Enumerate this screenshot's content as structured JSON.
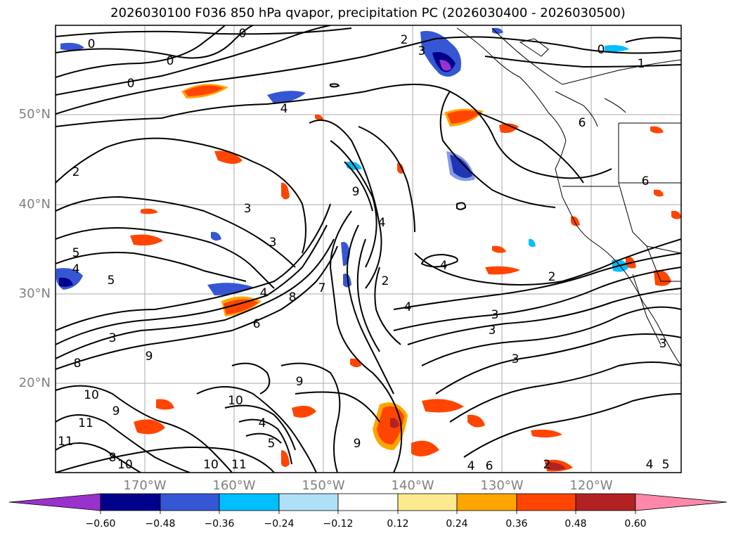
{
  "title": "2026030100 F036 850 hPa qvapor, precipitation PC (2026030400 - 2026030500)",
  "map": {
    "lat_labels": [
      "50°N",
      "40°N",
      "30°N",
      "20°N"
    ],
    "lon_labels": [
      "170°W",
      "160°W",
      "150°W",
      "140°W",
      "130°W",
      "120°W"
    ],
    "contour_labels": [
      "0",
      "0",
      "0",
      "0",
      "2",
      "3",
      "0",
      "1",
      "4",
      "2",
      "6",
      "6",
      "3",
      "9",
      "4",
      "5",
      "4",
      "5",
      "3",
      "7",
      "4",
      "2",
      "4",
      "3",
      "3",
      "4",
      "3",
      "8",
      "3",
      "6",
      "9",
      "8",
      "9",
      "10",
      "9",
      "11",
      "10",
      "4",
      "5",
      "11",
      "8",
      "10",
      "10",
      "11",
      "9",
      "4",
      "6",
      "2",
      "3",
      "2",
      "4",
      "5"
    ]
  },
  "colorbar": {
    "colors": [
      "#9932cc",
      "#00008b",
      "#3557d4",
      "#00bfff",
      "#b0e0f8",
      "#ffffff",
      "#fde98e",
      "#ffa500",
      "#ff4500",
      "#b22222",
      "#ff88aa"
    ],
    "ticks": [
      "−0.60",
      "−0.48",
      "−0.36",
      "−0.24",
      "−0.12",
      "0.12",
      "0.24",
      "0.36",
      "0.48",
      "0.60"
    ]
  }
}
